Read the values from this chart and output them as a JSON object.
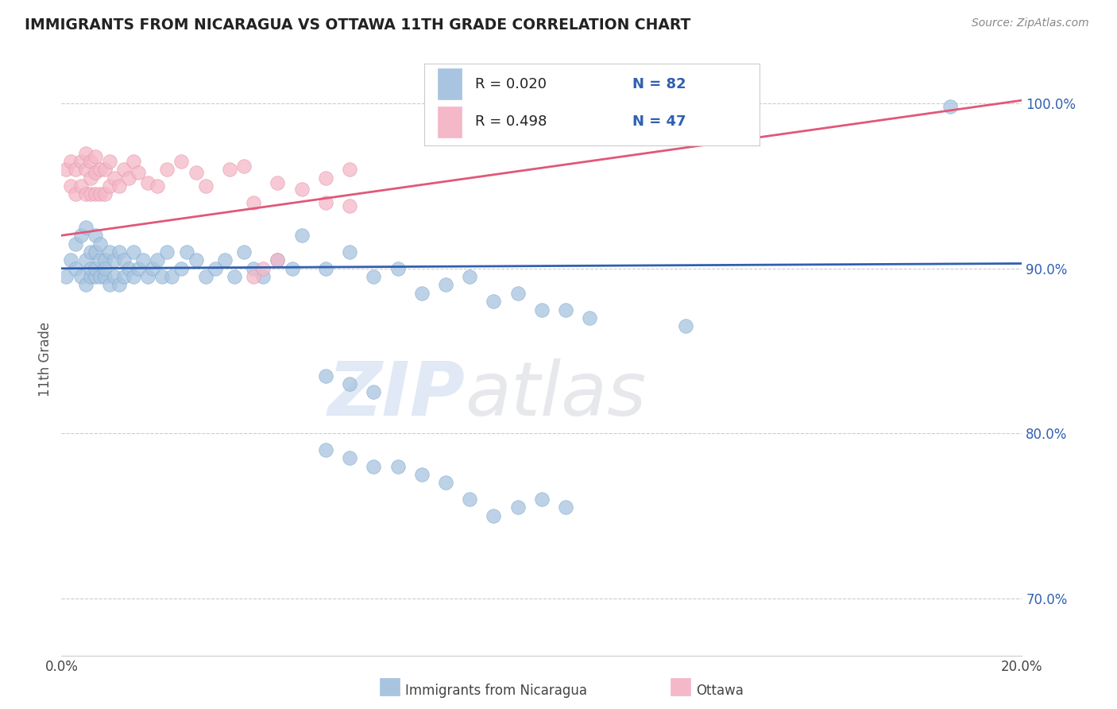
{
  "title": "IMMIGRANTS FROM NICARAGUA VS OTTAWA 11TH GRADE CORRELATION CHART",
  "source_text": "Source: ZipAtlas.com",
  "ylabel": "11th Grade",
  "watermark_zip": "ZIP",
  "watermark_atlas": "atlas",
  "xlim": [
    0.0,
    0.2
  ],
  "ylim": [
    0.665,
    1.025
  ],
  "blue_color": "#a8c4e0",
  "blue_edge_color": "#7aa8cc",
  "pink_color": "#f4b8c8",
  "pink_edge_color": "#e890a8",
  "blue_line_color": "#3060b0",
  "pink_line_color": "#e05878",
  "legend_r1": "R = 0.020",
  "legend_n1": "N = 82",
  "legend_r2": "R = 0.498",
  "legend_n2": "N = 47",
  "blue_trend_y0": 0.9,
  "blue_trend_y1": 0.903,
  "pink_trend_y0": 0.92,
  "pink_trend_y1": 1.002,
  "blue_x": [
    0.001,
    0.002,
    0.003,
    0.003,
    0.004,
    0.004,
    0.005,
    0.005,
    0.005,
    0.006,
    0.006,
    0.006,
    0.007,
    0.007,
    0.007,
    0.007,
    0.008,
    0.008,
    0.008,
    0.009,
    0.009,
    0.009,
    0.01,
    0.01,
    0.011,
    0.011,
    0.012,
    0.012,
    0.013,
    0.013,
    0.014,
    0.015,
    0.015,
    0.016,
    0.017,
    0.018,
    0.019,
    0.02,
    0.021,
    0.022,
    0.023,
    0.025,
    0.026,
    0.028,
    0.03,
    0.032,
    0.034,
    0.036,
    0.038,
    0.04,
    0.042,
    0.045,
    0.048,
    0.05,
    0.055,
    0.06,
    0.065,
    0.07,
    0.075,
    0.08,
    0.085,
    0.09,
    0.095,
    0.1,
    0.105,
    0.11,
    0.055,
    0.06,
    0.065,
    0.07,
    0.075,
    0.08,
    0.085,
    0.09,
    0.095,
    0.1,
    0.105,
    0.055,
    0.06,
    0.065,
    0.13,
    0.185
  ],
  "blue_y": [
    0.895,
    0.905,
    0.9,
    0.915,
    0.895,
    0.92,
    0.905,
    0.89,
    0.925,
    0.895,
    0.91,
    0.9,
    0.895,
    0.91,
    0.9,
    0.92,
    0.895,
    0.905,
    0.915,
    0.895,
    0.905,
    0.9,
    0.89,
    0.91,
    0.895,
    0.905,
    0.89,
    0.91,
    0.895,
    0.905,
    0.9,
    0.895,
    0.91,
    0.9,
    0.905,
    0.895,
    0.9,
    0.905,
    0.895,
    0.91,
    0.895,
    0.9,
    0.91,
    0.905,
    0.895,
    0.9,
    0.905,
    0.895,
    0.91,
    0.9,
    0.895,
    0.905,
    0.9,
    0.92,
    0.9,
    0.91,
    0.895,
    0.9,
    0.885,
    0.89,
    0.895,
    0.88,
    0.885,
    0.875,
    0.875,
    0.87,
    0.79,
    0.785,
    0.78,
    0.78,
    0.775,
    0.77,
    0.76,
    0.75,
    0.755,
    0.76,
    0.755,
    0.835,
    0.83,
    0.825,
    0.865,
    0.998
  ],
  "pink_x": [
    0.001,
    0.002,
    0.002,
    0.003,
    0.003,
    0.004,
    0.004,
    0.005,
    0.005,
    0.005,
    0.006,
    0.006,
    0.006,
    0.007,
    0.007,
    0.007,
    0.008,
    0.008,
    0.009,
    0.009,
    0.01,
    0.01,
    0.011,
    0.012,
    0.013,
    0.014,
    0.015,
    0.016,
    0.018,
    0.02,
    0.022,
    0.025,
    0.028,
    0.03,
    0.035,
    0.038,
    0.04,
    0.045,
    0.05,
    0.055,
    0.06,
    0.04,
    0.042,
    0.045,
    0.055,
    0.06,
    0.12
  ],
  "pink_y": [
    0.96,
    0.95,
    0.965,
    0.945,
    0.96,
    0.95,
    0.965,
    0.945,
    0.96,
    0.97,
    0.945,
    0.955,
    0.965,
    0.945,
    0.958,
    0.968,
    0.945,
    0.96,
    0.945,
    0.96,
    0.95,
    0.965,
    0.955,
    0.95,
    0.96,
    0.955,
    0.965,
    0.958,
    0.952,
    0.95,
    0.96,
    0.965,
    0.958,
    0.95,
    0.96,
    0.962,
    0.94,
    0.952,
    0.948,
    0.955,
    0.96,
    0.895,
    0.9,
    0.905,
    0.94,
    0.938,
    0.998
  ]
}
